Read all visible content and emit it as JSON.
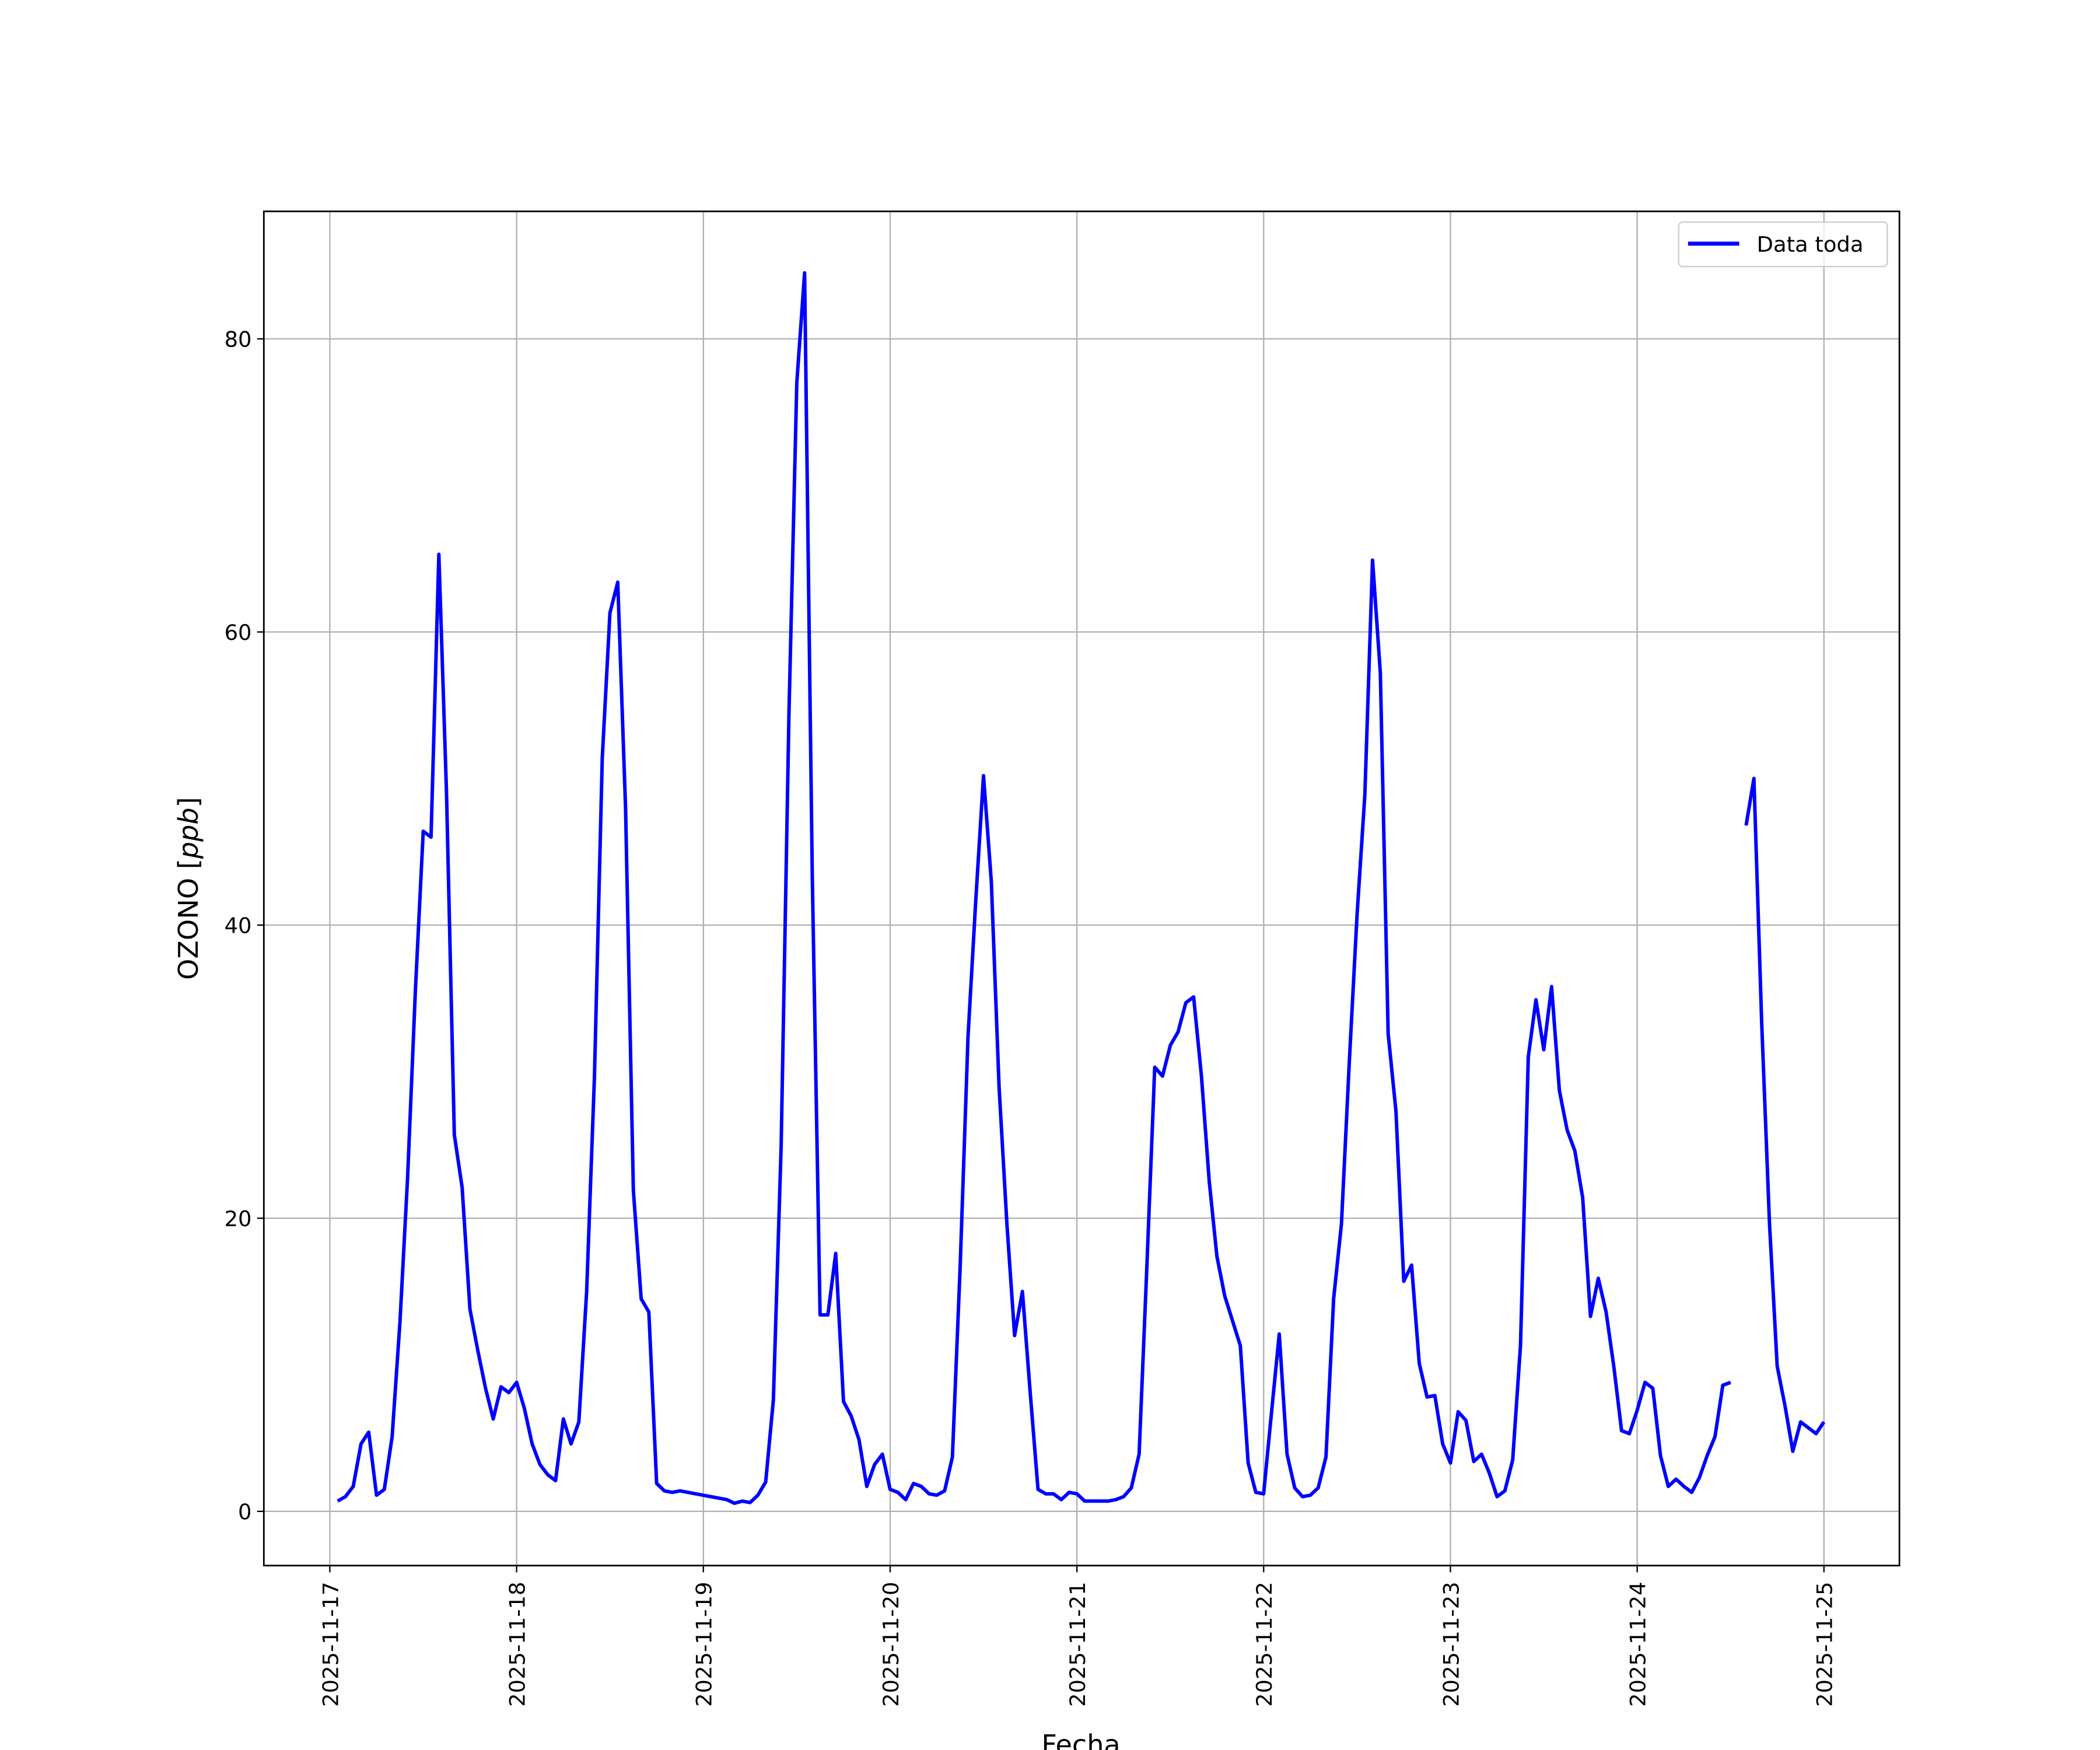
{
  "chart_data": {
    "type": "line",
    "title": "",
    "xlabel": "Fecha",
    "ylabel": "OZONO [ppb]",
    "ylabel_prefix": "OZONO [",
    "ylabel_italic": "ppb",
    "ylabel_suffix": "]",
    "ylim": [
      -3.7,
      88.7
    ],
    "xlim": [
      "2025-11-16 15:31",
      "2025-11-25 09:42"
    ],
    "grid": true,
    "legend_position": "top-right",
    "y_ticks": [
      "0",
      "20",
      "40",
      "60",
      "80"
    ],
    "x_ticks": [
      "2025-11-17",
      "2025-11-18",
      "2025-11-19",
      "2025-11-20",
      "2025-11-21",
      "2025-11-22",
      "2025-11-23",
      "2025-11-24",
      "2025-11-25"
    ],
    "series": [
      {
        "name": "Data toda",
        "color": "#0000ff",
        "points": [
          [
            "2025-11-17 01:00",
            0.7
          ],
          [
            "2025-11-17 02:00",
            1.0
          ],
          [
            "2025-11-17 03:00",
            1.7
          ],
          [
            "2025-11-17 04:00",
            4.6
          ],
          [
            "2025-11-17 05:00",
            5.4
          ],
          [
            "2025-11-17 06:00",
            1.1
          ],
          [
            "2025-11-17 07:00",
            1.5
          ],
          [
            "2025-11-17 08:00",
            5.1
          ],
          [
            "2025-11-17 09:00",
            12.9
          ],
          [
            "2025-11-17 10:00",
            22.8
          ],
          [
            "2025-11-17 11:00",
            35.6
          ],
          [
            "2025-11-17 12:00",
            46.4
          ],
          [
            "2025-11-17 13:00",
            46.0
          ],
          [
            "2025-11-17 14:00",
            65.3
          ],
          [
            "2025-11-17 15:00",
            49.0
          ],
          [
            "2025-11-17 16:00",
            25.7
          ],
          [
            "2025-11-17 17:00",
            22.1
          ],
          [
            "2025-11-17 18:00",
            13.8
          ],
          [
            "2025-11-17 19:00",
            11.0
          ],
          [
            "2025-11-17 20:00",
            8.4
          ],
          [
            "2025-11-17 21:00",
            6.3
          ],
          [
            "2025-11-17 22:00",
            8.5
          ],
          [
            "2025-11-17 23:00",
            8.1
          ],
          [
            "2025-11-18 00:00",
            8.8
          ],
          [
            "2025-11-18 01:00",
            7.0
          ],
          [
            "2025-11-18 02:00",
            4.6
          ],
          [
            "2025-11-18 03:00",
            3.2
          ],
          [
            "2025-11-18 04:00",
            2.5
          ],
          [
            "2025-11-18 05:00",
            2.1
          ],
          [
            "2025-11-18 06:00",
            6.3
          ],
          [
            "2025-11-18 07:00",
            4.6
          ],
          [
            "2025-11-18 08:00",
            6.1
          ],
          [
            "2025-11-18 09:00",
            15.0
          ],
          [
            "2025-11-18 10:00",
            29.7
          ],
          [
            "2025-11-18 11:00",
            51.4
          ],
          [
            "2025-11-18 12:00",
            61.3
          ],
          [
            "2025-11-18 13:00",
            63.4
          ],
          [
            "2025-11-18 14:00",
            48.0
          ],
          [
            "2025-11-18 15:00",
            21.9
          ],
          [
            "2025-11-18 16:00",
            14.5
          ],
          [
            "2025-11-18 17:00",
            13.6
          ],
          [
            "2025-11-18 18:00",
            1.9
          ],
          [
            "2025-11-18 19:00",
            1.4
          ],
          [
            "2025-11-18 20:00",
            1.3
          ],
          [
            "2025-11-18 21:00",
            1.4
          ],
          [
            "2025-11-19 03:00",
            0.8
          ],
          [
            "2025-11-19 04:00",
            0.55
          ],
          [
            "2025-11-19 05:00",
            0.7
          ],
          [
            "2025-11-19 06:00",
            0.6
          ],
          [
            "2025-11-19 07:00",
            1.1
          ],
          [
            "2025-11-19 08:00",
            2.0
          ],
          [
            "2025-11-19 09:00",
            7.6
          ],
          [
            "2025-11-19 10:00",
            25.0
          ],
          [
            "2025-11-19 11:00",
            54.5
          ],
          [
            "2025-11-19 12:00",
            77.0
          ],
          [
            "2025-11-19 13:00",
            84.5
          ],
          [
            "2025-11-19 14:00",
            43.4
          ],
          [
            "2025-11-19 15:00",
            13.4
          ],
          [
            "2025-11-19 16:00",
            13.4
          ],
          [
            "2025-11-19 17:00",
            17.6
          ],
          [
            "2025-11-19 18:00",
            7.5
          ],
          [
            "2025-11-19 19:00",
            6.5
          ],
          [
            "2025-11-19 20:00",
            4.9
          ],
          [
            "2025-11-19 21:00",
            1.7
          ],
          [
            "2025-11-19 22:00",
            3.2
          ],
          [
            "2025-11-19 23:00",
            3.9
          ],
          [
            "2025-11-20 00:00",
            1.5
          ],
          [
            "2025-11-20 01:00",
            1.3
          ],
          [
            "2025-11-20 02:00",
            0.8
          ],
          [
            "2025-11-20 03:00",
            1.9
          ],
          [
            "2025-11-20 04:00",
            1.7
          ],
          [
            "2025-11-20 05:00",
            1.2
          ],
          [
            "2025-11-20 06:00",
            1.1
          ],
          [
            "2025-11-20 07:00",
            1.4
          ],
          [
            "2025-11-20 08:00",
            3.7
          ],
          [
            "2025-11-20 09:00",
            16.8
          ],
          [
            "2025-11-20 10:00",
            32.4
          ],
          [
            "2025-11-20 11:00",
            41.6
          ],
          [
            "2025-11-20 12:00",
            50.2
          ],
          [
            "2025-11-20 13:00",
            43.0
          ],
          [
            "2025-11-20 14:00",
            28.9
          ],
          [
            "2025-11-20 15:00",
            19.6
          ],
          [
            "2025-11-20 16:00",
            12.0
          ],
          [
            "2025-11-20 17:00",
            15.0
          ],
          [
            "2025-11-20 18:00",
            8.1
          ],
          [
            "2025-11-20 19:00",
            1.5
          ],
          [
            "2025-11-20 20:00",
            1.2
          ],
          [
            "2025-11-20 21:00",
            1.2
          ],
          [
            "2025-11-20 22:00",
            0.8
          ],
          [
            "2025-11-20 23:00",
            1.3
          ],
          [
            "2025-11-21 00:00",
            1.2
          ],
          [
            "2025-11-21 01:00",
            0.7
          ],
          [
            "2025-11-21 02:00",
            0.7
          ],
          [
            "2025-11-21 03:00",
            0.7
          ],
          [
            "2025-11-21 04:00",
            0.7
          ],
          [
            "2025-11-21 05:00",
            0.8
          ],
          [
            "2025-11-21 06:00",
            1.0
          ],
          [
            "2025-11-21 07:00",
            1.6
          ],
          [
            "2025-11-21 08:00",
            3.9
          ],
          [
            "2025-11-21 09:00",
            16.8
          ],
          [
            "2025-11-21 10:00",
            30.3
          ],
          [
            "2025-11-21 11:00",
            29.7
          ],
          [
            "2025-11-21 12:00",
            31.8
          ],
          [
            "2025-11-21 13:00",
            32.7
          ],
          [
            "2025-11-21 14:00",
            34.7
          ],
          [
            "2025-11-21 15:00",
            35.1
          ],
          [
            "2025-11-21 16:00",
            29.7
          ],
          [
            "2025-11-21 17:00",
            22.5
          ],
          [
            "2025-11-21 18:00",
            17.4
          ],
          [
            "2025-11-21 19:00",
            14.7
          ],
          [
            "2025-11-21 20:00",
            13.0
          ],
          [
            "2025-11-21 21:00",
            11.3
          ],
          [
            "2025-11-21 22:00",
            3.3
          ],
          [
            "2025-11-21 23:00",
            1.3
          ],
          [
            "2025-11-22 00:00",
            1.2
          ],
          [
            "2025-11-22 01:00",
            6.7
          ],
          [
            "2025-11-22 02:00",
            12.1
          ],
          [
            "2025-11-22 03:00",
            3.9
          ],
          [
            "2025-11-22 04:00",
            1.6
          ],
          [
            "2025-11-22 05:00",
            1.0
          ],
          [
            "2025-11-22 06:00",
            1.1
          ],
          [
            "2025-11-22 07:00",
            1.6
          ],
          [
            "2025-11-22 08:00",
            3.7
          ],
          [
            "2025-11-22 09:00",
            14.5
          ],
          [
            "2025-11-22 10:00",
            19.6
          ],
          [
            "2025-11-22 11:00",
            30.6
          ],
          [
            "2025-11-22 12:00",
            40.7
          ],
          [
            "2025-11-22 13:00",
            48.9
          ],
          [
            "2025-11-22 14:00",
            64.9
          ],
          [
            "2025-11-22 15:00",
            57.2
          ],
          [
            "2025-11-22 16:00",
            32.6
          ],
          [
            "2025-11-22 17:00",
            27.3
          ],
          [
            "2025-11-22 18:00",
            15.7
          ],
          [
            "2025-11-22 19:00",
            16.8
          ],
          [
            "2025-11-22 20:00",
            10.1
          ],
          [
            "2025-11-22 21:00",
            7.8
          ],
          [
            "2025-11-22 22:00",
            7.9
          ],
          [
            "2025-11-22 23:00",
            4.6
          ],
          [
            "2025-11-23 00:00",
            3.3
          ],
          [
            "2025-11-23 01:00",
            6.8
          ],
          [
            "2025-11-23 02:00",
            6.2
          ],
          [
            "2025-11-23 03:00",
            3.4
          ],
          [
            "2025-11-23 04:00",
            3.9
          ],
          [
            "2025-11-23 05:00",
            2.6
          ],
          [
            "2025-11-23 06:00",
            1.0
          ],
          [
            "2025-11-23 07:00",
            1.4
          ],
          [
            "2025-11-23 08:00",
            3.5
          ],
          [
            "2025-11-23 09:00",
            11.3
          ],
          [
            "2025-11-23 10:00",
            31.0
          ],
          [
            "2025-11-23 11:00",
            34.9
          ],
          [
            "2025-11-23 12:00",
            31.5
          ],
          [
            "2025-11-23 13:00",
            35.8
          ],
          [
            "2025-11-23 14:00",
            28.7
          ],
          [
            "2025-11-23 15:00",
            26.0
          ],
          [
            "2025-11-23 16:00",
            24.6
          ],
          [
            "2025-11-23 17:00",
            21.4
          ],
          [
            "2025-11-23 18:00",
            13.3
          ],
          [
            "2025-11-23 19:00",
            15.9
          ],
          [
            "2025-11-23 20:00",
            13.6
          ],
          [
            "2025-11-23 21:00",
            9.9
          ],
          [
            "2025-11-23 22:00",
            5.5
          ],
          [
            "2025-11-23 23:00",
            5.3
          ],
          [
            "2025-11-24 00:00",
            6.9
          ],
          [
            "2025-11-24 01:00",
            8.8
          ],
          [
            "2025-11-24 02:00",
            8.4
          ],
          [
            "2025-11-24 03:00",
            3.8
          ],
          [
            "2025-11-24 04:00",
            1.7
          ],
          [
            "2025-11-24 05:00",
            2.2
          ],
          [
            "2025-11-24 06:00",
            1.7
          ],
          [
            "2025-11-24 07:00",
            1.3
          ],
          [
            "2025-11-24 08:00",
            2.3
          ],
          [
            "2025-11-24 09:00",
            3.8
          ],
          [
            "2025-11-24 10:00",
            5.1
          ],
          [
            "2025-11-24 11:00",
            8.6
          ],
          [
            "2025-11-24 12:00",
            8.8
          ],
          [
            "2025-11-24 13:00",
            null
          ],
          [
            "2025-11-24 14:00",
            46.8
          ],
          [
            "2025-11-24 15:00",
            50.0
          ],
          [
            "2025-11-24 16:00",
            33.3
          ],
          [
            "2025-11-24 17:00",
            19.6
          ],
          [
            "2025-11-24 18:00",
            9.9
          ],
          [
            "2025-11-24 19:00",
            7.2
          ],
          [
            "2025-11-24 20:00",
            4.1
          ],
          [
            "2025-11-24 21:00",
            6.1
          ],
          [
            "2025-11-24 22:00",
            5.7
          ],
          [
            "2025-11-24 23:00",
            5.3
          ],
          [
            "2025-11-25 00:00",
            6.1
          ]
        ]
      }
    ]
  }
}
